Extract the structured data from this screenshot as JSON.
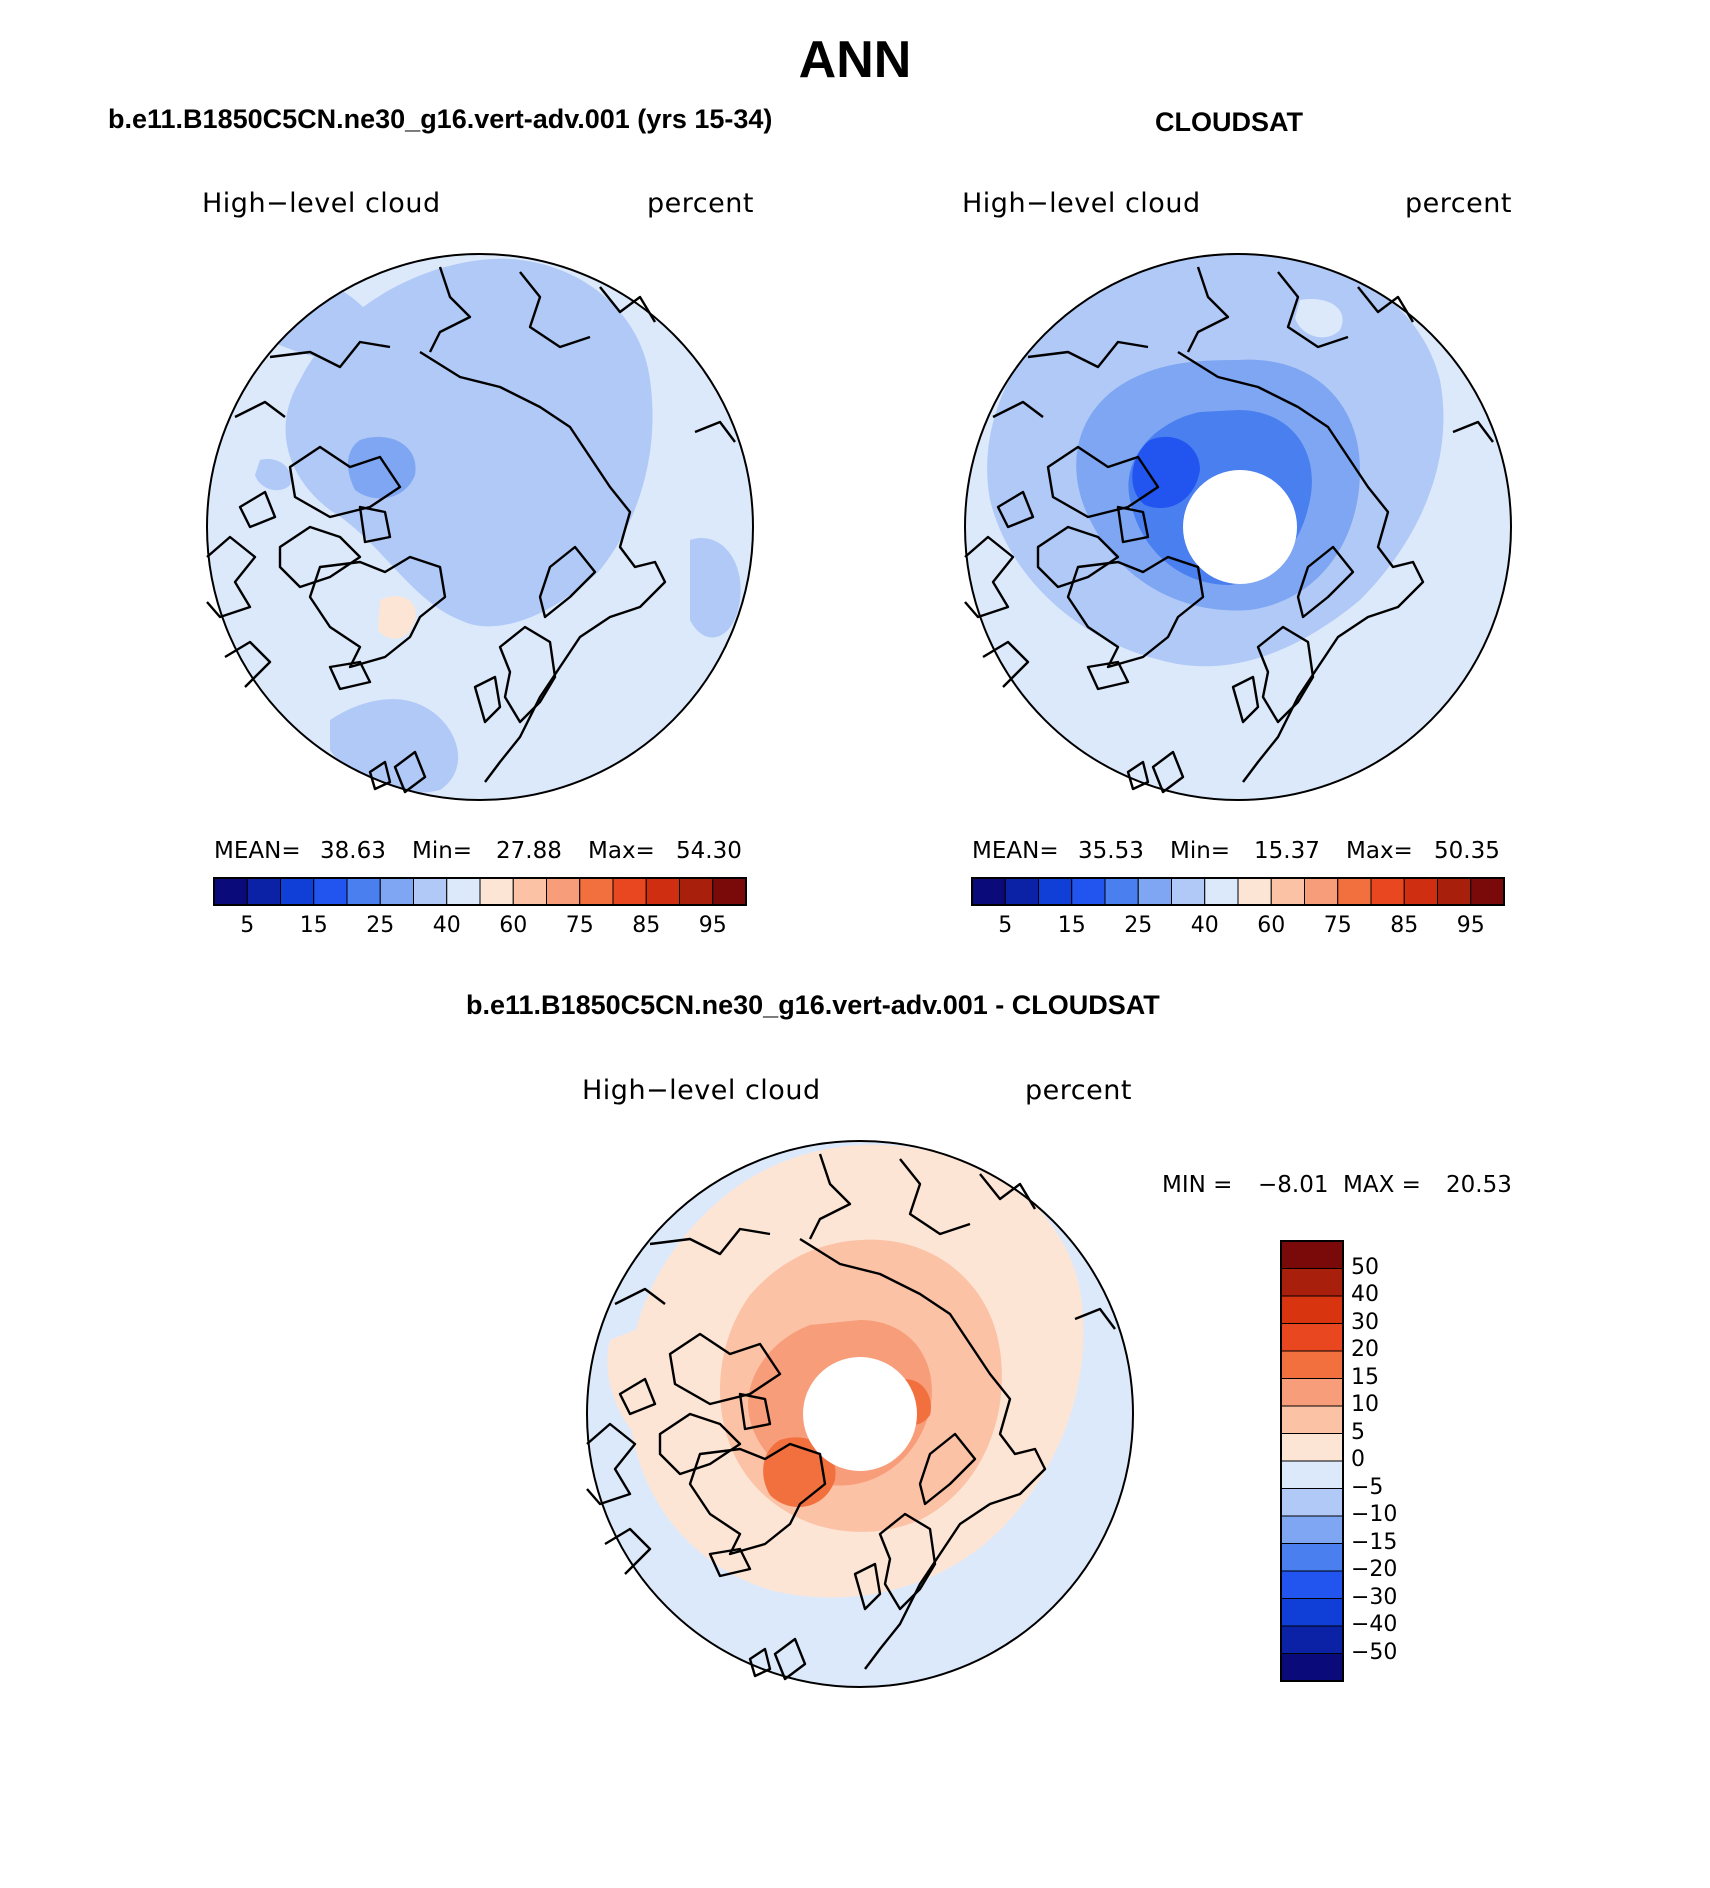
{
  "title": "ANN",
  "panels": [
    {
      "case_title": "b.e11.B1850C5CN.ne30_g16.vert-adv.001 (yrs 15-34)",
      "variable": "High−level cloud",
      "units": "percent",
      "mean_label": "MEAN=",
      "mean": "38.63",
      "min_label": "Min=",
      "min": "27.88",
      "max_label": "Max=",
      "max": "54.30",
      "has_pole_hole": false
    },
    {
      "case_title": "CLOUDSAT",
      "variable": "High−level cloud",
      "units": "percent",
      "mean_label": "MEAN=",
      "mean": "35.53",
      "min_label": "Min=",
      "min": "15.37",
      "max_label": "Max=",
      "max": "50.35",
      "has_pole_hole": true
    }
  ],
  "abs_colorbar": {
    "tick_labels": [
      "5",
      "15",
      "25",
      "40",
      "60",
      "75",
      "85",
      "95"
    ],
    "colors": [
      "#0a0a7a",
      "#0c22a6",
      "#0f3fd6",
      "#2255f0",
      "#4a7ff0",
      "#7fa6f2",
      "#b0c9f7",
      "#dce9fb",
      "#fde5d6",
      "#fbc2a6",
      "#f89d7a",
      "#f26f3e",
      "#e8471f",
      "#cf2f10",
      "#a81f0c",
      "#7a0a0a"
    ]
  },
  "difference_panel": {
    "case_title": "b.e11.B1850C5CN.ne30_g16.vert-adv.001 - CLOUDSAT",
    "variable": "High−level cloud",
    "units": "percent",
    "min_label": "MIN =",
    "min": "−8.01",
    "max_label": "MAX =",
    "max": "20.53",
    "has_pole_hole": true
  },
  "diff_colorbar": {
    "tick_labels": [
      "50",
      "40",
      "30",
      "20",
      "15",
      "10",
      "5",
      "0",
      "−5",
      "−10",
      "−15",
      "−20",
      "−30",
      "−40",
      "−50"
    ],
    "colors_top_to_bottom": [
      "#7a0a0a",
      "#a81f0c",
      "#d83410",
      "#e8471f",
      "#f26f3e",
      "#f89d7a",
      "#fbc2a6",
      "#fde5d6",
      "#dce9fb",
      "#b0c9f7",
      "#7fa6f2",
      "#4a7ff0",
      "#2255f0",
      "#0f3fd6",
      "#0c22a6",
      "#0a0a7a"
    ]
  },
  "chart_data": [
    {
      "type": "heatmap",
      "title": "b.e11.B1850C5CN.ne30_g16.vert-adv.001 (yrs 15-34)",
      "projection": "north polar stereographic",
      "variable": "High−level cloud",
      "units": "percent",
      "mean": 38.63,
      "min": 27.88,
      "max": 54.3,
      "levels": [
        5,
        10,
        15,
        20,
        25,
        30,
        40,
        50,
        60,
        70,
        75,
        80,
        85,
        90,
        95
      ]
    },
    {
      "type": "heatmap",
      "title": "CLOUDSAT",
      "projection": "north polar stereographic",
      "variable": "High−level cloud",
      "units": "percent",
      "mean": 35.53,
      "min": 15.37,
      "max": 50.35,
      "levels": [
        5,
        10,
        15,
        20,
        25,
        30,
        40,
        50,
        60,
        70,
        75,
        80,
        85,
        90,
        95
      ]
    },
    {
      "type": "heatmap",
      "title": "b.e11.B1850C5CN.ne30_g16.vert-adv.001 - CLOUDSAT",
      "projection": "north polar stereographic",
      "variable": "High−level cloud",
      "units": "percent",
      "min": -8.01,
      "max": 20.53,
      "levels": [
        -50,
        -40,
        -30,
        -20,
        -15,
        -10,
        -5,
        0,
        5,
        10,
        15,
        20,
        30,
        40,
        50
      ]
    }
  ]
}
